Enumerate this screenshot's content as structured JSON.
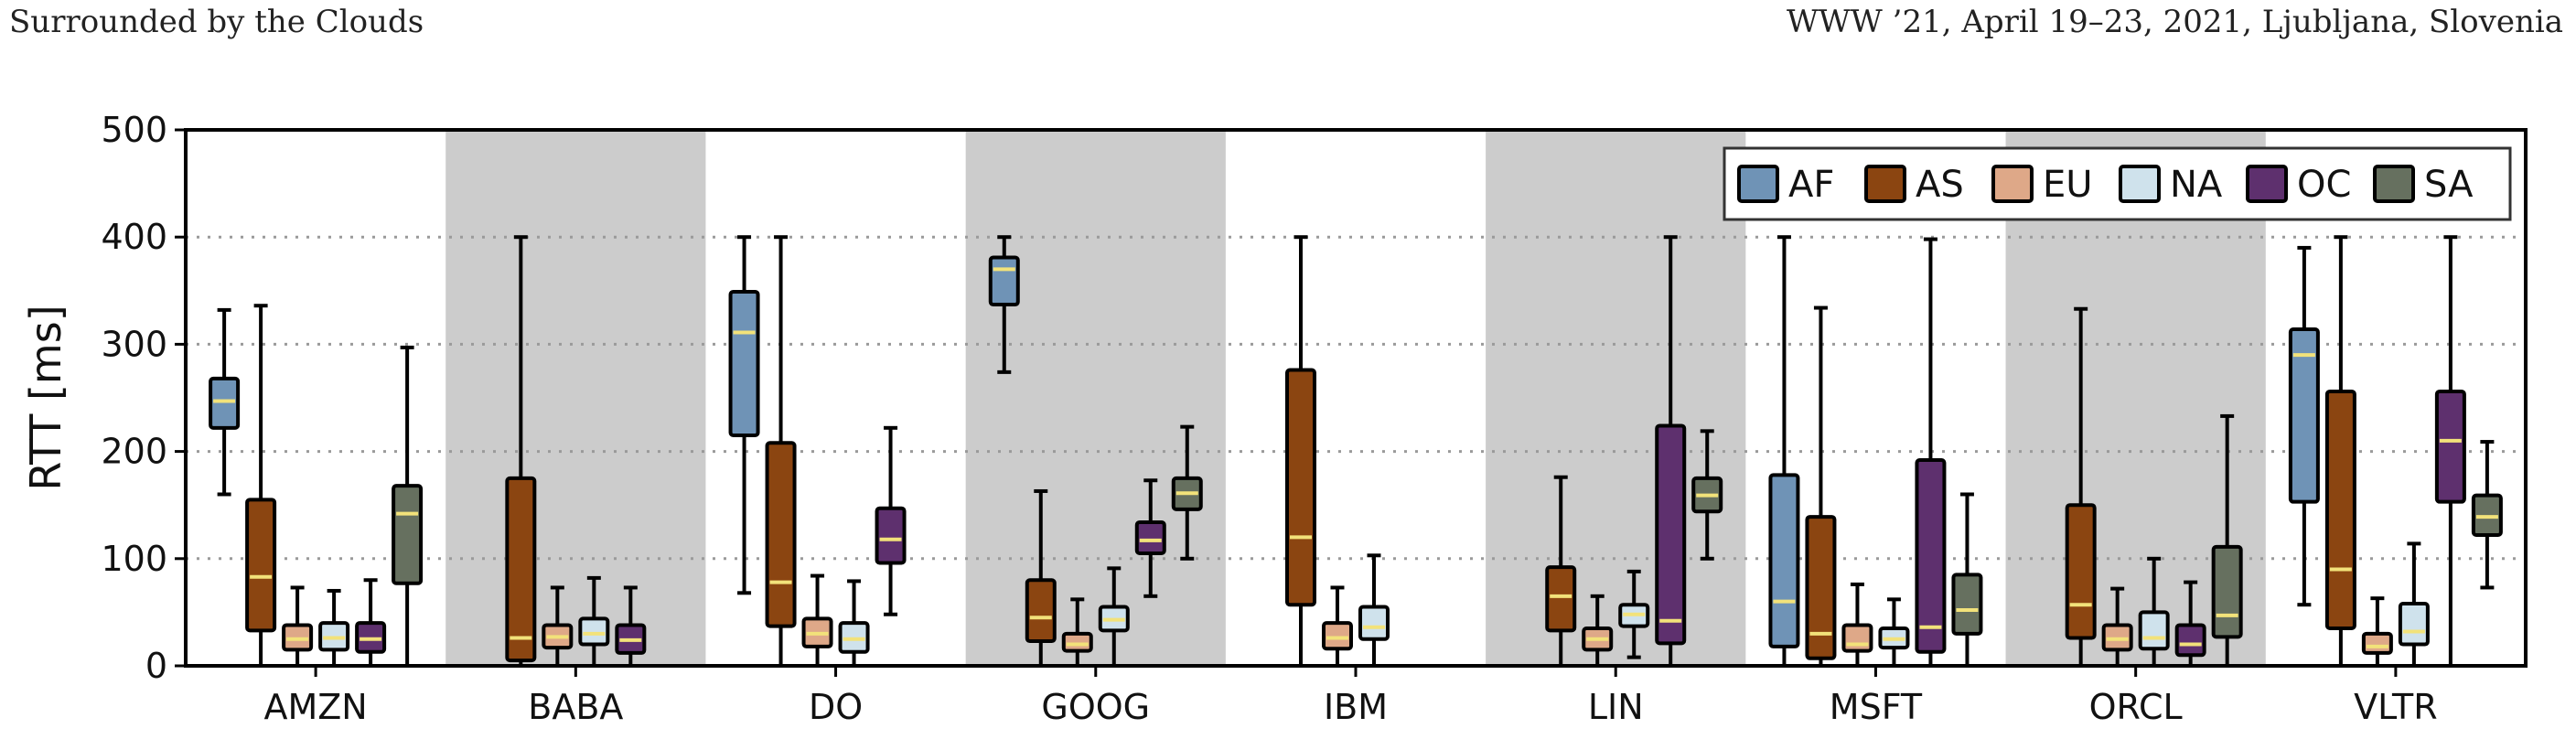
{
  "header": {
    "left": "Surrounded by the Clouds",
    "right": "WWW ’21, April 19–23, 2021, Ljubljana, Slovenia"
  },
  "chart_data": {
    "type": "box",
    "title": "",
    "xlabel": "",
    "ylabel": "RTT [ms]",
    "ylim": [
      0,
      500
    ],
    "yticks": [
      0,
      100,
      200,
      300,
      400,
      500
    ],
    "grid": "horizontal dotted",
    "legend_position": "top-right",
    "categories": [
      "AMZN",
      "BABA",
      "DO",
      "GOOG",
      "IBM",
      "LIN",
      "MSFT",
      "ORCL",
      "VLTR"
    ],
    "shaded_categories": [
      "BABA",
      "GOOG",
      "LIN",
      "ORCL"
    ],
    "colors": {
      "AF": "#6f93b6",
      "AS": "#8b4511",
      "EU": "#dea888",
      "NA": "#cfe2ec",
      "OC": "#5e306e",
      "SA": "#66705f",
      "median": "#f2e27a",
      "shade": "#cccccc"
    },
    "series": [
      {
        "name": "AF",
        "boxes": [
          {
            "min": 160,
            "q1": 222,
            "med": 247,
            "q3": 268,
            "max": 332
          },
          null,
          {
            "min": 68,
            "q1": 215,
            "med": 311,
            "q3": 349,
            "max": 400
          },
          {
            "min": 274,
            "q1": 337,
            "med": 370,
            "q3": 381,
            "max": 400
          },
          null,
          null,
          {
            "min": 0,
            "q1": 18,
            "med": 60,
            "q3": 178,
            "max": 400
          },
          null,
          {
            "min": 57,
            "q1": 153,
            "med": 290,
            "q3": 314,
            "max": 390
          }
        ]
      },
      {
        "name": "AS",
        "boxes": [
          {
            "min": 0,
            "q1": 33,
            "med": 83,
            "q3": 155,
            "max": 336
          },
          {
            "min": 0,
            "q1": 5,
            "med": 26,
            "q3": 175,
            "max": 400
          },
          {
            "min": 0,
            "q1": 37,
            "med": 78,
            "q3": 208,
            "max": 400
          },
          {
            "min": 0,
            "q1": 23,
            "med": 45,
            "q3": 80,
            "max": 163
          },
          {
            "min": 0,
            "q1": 57,
            "med": 120,
            "q3": 276,
            "max": 400
          },
          {
            "min": 0,
            "q1": 33,
            "med": 65,
            "q3": 92,
            "max": 176
          },
          {
            "min": 0,
            "q1": 7,
            "med": 30,
            "q3": 139,
            "max": 334
          },
          {
            "min": 0,
            "q1": 26,
            "med": 57,
            "q3": 150,
            "max": 333
          },
          {
            "min": 0,
            "q1": 35,
            "med": 90,
            "q3": 256,
            "max": 400
          }
        ]
      },
      {
        "name": "EU",
        "boxes": [
          {
            "min": 0,
            "q1": 15,
            "med": 25,
            "q3": 38,
            "max": 73
          },
          {
            "min": 0,
            "q1": 17,
            "med": 27,
            "q3": 38,
            "max": 73
          },
          {
            "min": 0,
            "q1": 18,
            "med": 30,
            "q3": 44,
            "max": 84
          },
          {
            "min": 0,
            "q1": 14,
            "med": 20,
            "q3": 30,
            "max": 62
          },
          {
            "min": 0,
            "q1": 16,
            "med": 26,
            "q3": 40,
            "max": 73
          },
          {
            "min": 0,
            "q1": 15,
            "med": 25,
            "q3": 35,
            "max": 65
          },
          {
            "min": 0,
            "q1": 14,
            "med": 20,
            "q3": 38,
            "max": 76
          },
          {
            "min": 0,
            "q1": 15,
            "med": 25,
            "q3": 38,
            "max": 72
          },
          {
            "min": 0,
            "q1": 12,
            "med": 18,
            "q3": 30,
            "max": 63
          }
        ]
      },
      {
        "name": "NA",
        "boxes": [
          {
            "min": 0,
            "q1": 15,
            "med": 26,
            "q3": 40,
            "max": 70
          },
          {
            "min": 0,
            "q1": 20,
            "med": 30,
            "q3": 44,
            "max": 82
          },
          {
            "min": 0,
            "q1": 13,
            "med": 25,
            "q3": 40,
            "max": 79
          },
          {
            "min": 0,
            "q1": 33,
            "med": 43,
            "q3": 55,
            "max": 91
          },
          {
            "min": 0,
            "q1": 25,
            "med": 36,
            "q3": 55,
            "max": 103
          },
          {
            "min": 8,
            "q1": 37,
            "med": 48,
            "q3": 57,
            "max": 88
          },
          {
            "min": 0,
            "q1": 17,
            "med": 25,
            "q3": 35,
            "max": 62
          },
          {
            "min": 0,
            "q1": 16,
            "med": 26,
            "q3": 50,
            "max": 100
          },
          {
            "min": 0,
            "q1": 20,
            "med": 32,
            "q3": 58,
            "max": 114
          }
        ]
      },
      {
        "name": "OC",
        "boxes": [
          {
            "min": 0,
            "q1": 13,
            "med": 25,
            "q3": 40,
            "max": 80
          },
          {
            "min": 0,
            "q1": 12,
            "med": 24,
            "q3": 38,
            "max": 73
          },
          {
            "min": 48,
            "q1": 96,
            "med": 118,
            "q3": 147,
            "max": 222
          },
          {
            "min": 65,
            "q1": 105,
            "med": 117,
            "q3": 134,
            "max": 173
          },
          null,
          {
            "min": 0,
            "q1": 21,
            "med": 42,
            "q3": 224,
            "max": 400
          },
          {
            "min": 0,
            "q1": 13,
            "med": 36,
            "q3": 192,
            "max": 398
          },
          {
            "min": 0,
            "q1": 10,
            "med": 20,
            "q3": 38,
            "max": 78
          },
          {
            "min": 0,
            "q1": 153,
            "med": 210,
            "q3": 256,
            "max": 400
          }
        ]
      },
      {
        "name": "SA",
        "boxes": [
          {
            "min": 0,
            "q1": 77,
            "med": 142,
            "q3": 168,
            "max": 297
          },
          null,
          null,
          {
            "min": 100,
            "q1": 146,
            "med": 161,
            "q3": 175,
            "max": 223
          },
          null,
          {
            "min": 100,
            "q1": 144,
            "med": 159,
            "q3": 175,
            "max": 219
          },
          {
            "min": 0,
            "q1": 30,
            "med": 52,
            "q3": 85,
            "max": 160
          },
          {
            "min": 0,
            "q1": 27,
            "med": 47,
            "q3": 111,
            "max": 233
          },
          {
            "min": 73,
            "q1": 122,
            "med": 139,
            "q3": 159,
            "max": 209
          }
        ]
      }
    ]
  }
}
